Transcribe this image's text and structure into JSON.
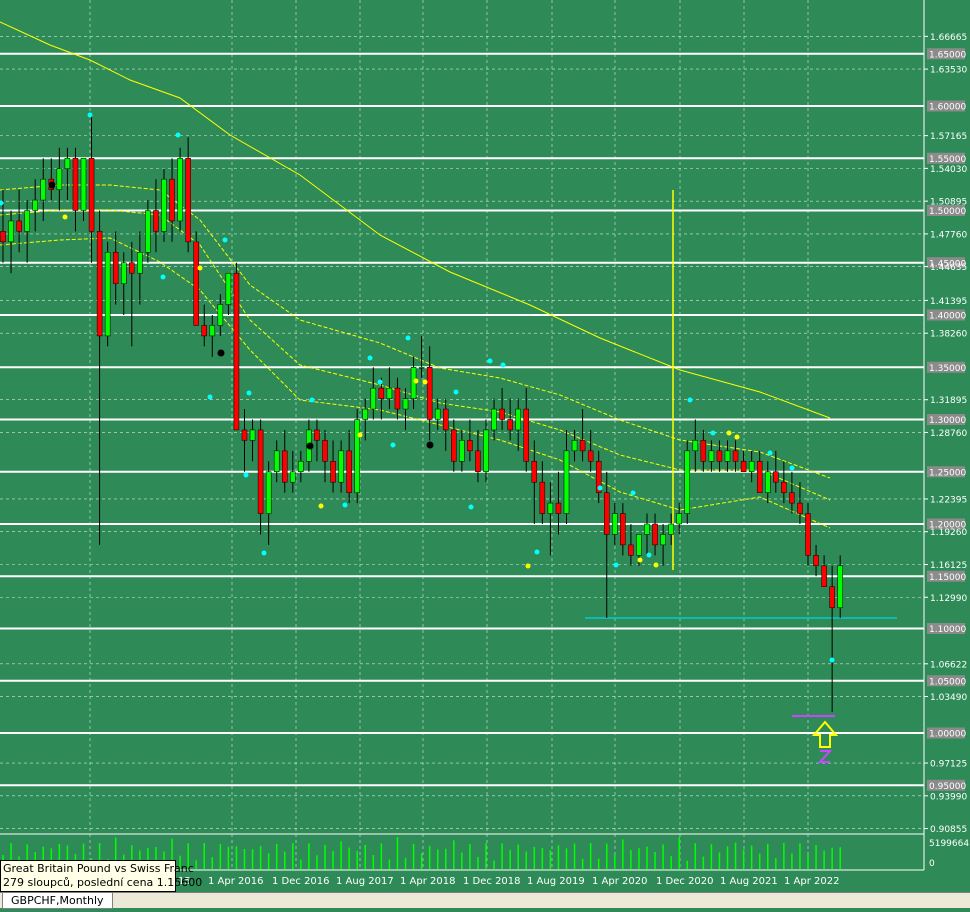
{
  "window": {
    "symbol_tab": "GBPCHF,Monthly"
  },
  "info": {
    "line1": "Great Britain Pound vs Swiss Franc",
    "line2": "279 sloupců, poslední cena 1.15600"
  },
  "colors": {
    "background": "#2e8b57",
    "bull_candle": "#00ff00",
    "bear_candle": "#ff0000",
    "ma_line": "#ffff00",
    "level_line": "#ffffff",
    "support_line": "#00cccc",
    "volume": "#00ff00",
    "dots_cyan": "#00ffff",
    "dots_yellow": "#ffff00",
    "arrow": "#ffff00",
    "zigzag_label": "#cc44ff"
  },
  "chart_data": {
    "type": "candlestick",
    "symbol": "GBPCHF",
    "timeframe": "Monthly",
    "ylim": [
      0.9085,
      1.69
    ],
    "price_axis_labels": [
      "1.66665",
      "1.65000",
      "1.63530",
      "1.60000",
      "1.57165",
      "1.55000",
      "1.54030",
      "1.50895",
      "1.50000",
      "1.47760",
      "1.45000",
      "1.44635",
      "1.41395",
      "1.40000",
      "1.38260",
      "1.35000",
      "1.31895",
      "1.30000",
      "1.28760",
      "1.25000",
      "1.22395",
      "1.20000",
      "1.19260",
      "1.16125",
      "1.15000",
      "1.12990",
      "1.10000",
      "1.06622",
      "1.05000",
      "1.03490",
      "1.00000",
      "0.97125",
      "0.95000",
      "0.93990",
      "0.90855"
    ],
    "highlighted_levels": [
      "1.65000",
      "1.60000",
      "1.55000",
      "1.50000",
      "1.45000",
      "1.40000",
      "1.35000",
      "1.30000",
      "1.25000",
      "1.20000",
      "1.15000",
      "1.10000",
      "1.05000",
      "1.00000",
      "0.95000"
    ],
    "x_axis_labels": [
      "15",
      "1 Apr 2016",
      "1 Dec 2016",
      "1 Aug 2017",
      "1 Apr 2018",
      "1 Dec 2018",
      "1 Aug 2019",
      "1 Apr 2020",
      "1 Dec 2020",
      "1 Aug 2021",
      "1 Apr 2022"
    ],
    "volume_labels": [
      "5199664",
      "0"
    ],
    "support_price": 1.11,
    "ohlc": [
      [
        1.48,
        1.52,
        1.45,
        1.47
      ],
      [
        1.47,
        1.5,
        1.44,
        1.49
      ],
      [
        1.49,
        1.52,
        1.46,
        1.48
      ],
      [
        1.48,
        1.51,
        1.45,
        1.5
      ],
      [
        1.5,
        1.53,
        1.48,
        1.51
      ],
      [
        1.51,
        1.55,
        1.49,
        1.53
      ],
      [
        1.53,
        1.55,
        1.51,
        1.52
      ],
      [
        1.52,
        1.56,
        1.5,
        1.54
      ],
      [
        1.54,
        1.56,
        1.51,
        1.55
      ],
      [
        1.55,
        1.56,
        1.48,
        1.5
      ],
      [
        1.5,
        1.55,
        1.49,
        1.55
      ],
      [
        1.55,
        1.59,
        1.45,
        1.48
      ],
      [
        1.48,
        1.5,
        1.18,
        1.38
      ],
      [
        1.38,
        1.47,
        1.37,
        1.46
      ],
      [
        1.46,
        1.48,
        1.41,
        1.43
      ],
      [
        1.43,
        1.46,
        1.4,
        1.45
      ],
      [
        1.45,
        1.47,
        1.37,
        1.44
      ],
      [
        1.44,
        1.48,
        1.41,
        1.46
      ],
      [
        1.46,
        1.51,
        1.45,
        1.5
      ],
      [
        1.5,
        1.53,
        1.46,
        1.48
      ],
      [
        1.48,
        1.54,
        1.47,
        1.53
      ],
      [
        1.53,
        1.55,
        1.47,
        1.49
      ],
      [
        1.49,
        1.56,
        1.48,
        1.55
      ],
      [
        1.55,
        1.57,
        1.46,
        1.47
      ],
      [
        1.47,
        1.48,
        1.39,
        1.39
      ],
      [
        1.39,
        1.41,
        1.37,
        1.38
      ],
      [
        1.38,
        1.4,
        1.36,
        1.39
      ],
      [
        1.39,
        1.42,
        1.38,
        1.41
      ],
      [
        1.41,
        1.44,
        1.4,
        1.44
      ],
      [
        1.44,
        1.45,
        1.29,
        1.29
      ],
      [
        1.29,
        1.31,
        1.25,
        1.28
      ],
      [
        1.28,
        1.3,
        1.26,
        1.29
      ],
      [
        1.29,
        1.3,
        1.19,
        1.21
      ],
      [
        1.21,
        1.26,
        1.18,
        1.25
      ],
      [
        1.25,
        1.28,
        1.24,
        1.27
      ],
      [
        1.27,
        1.29,
        1.23,
        1.24
      ],
      [
        1.24,
        1.27,
        1.23,
        1.25
      ],
      [
        1.25,
        1.27,
        1.24,
        1.26
      ],
      [
        1.26,
        1.3,
        1.25,
        1.29
      ],
      [
        1.29,
        1.3,
        1.26,
        1.28
      ],
      [
        1.28,
        1.29,
        1.24,
        1.26
      ],
      [
        1.26,
        1.28,
        1.23,
        1.24
      ],
      [
        1.24,
        1.28,
        1.23,
        1.27
      ],
      [
        1.27,
        1.29,
        1.22,
        1.23
      ],
      [
        1.23,
        1.31,
        1.22,
        1.3
      ],
      [
        1.3,
        1.32,
        1.28,
        1.31
      ],
      [
        1.31,
        1.35,
        1.3,
        1.33
      ],
      [
        1.33,
        1.34,
        1.3,
        1.32
      ],
      [
        1.32,
        1.35,
        1.31,
        1.33
      ],
      [
        1.33,
        1.34,
        1.3,
        1.31
      ],
      [
        1.31,
        1.33,
        1.29,
        1.32
      ],
      [
        1.32,
        1.36,
        1.31,
        1.35
      ],
      [
        1.35,
        1.38,
        1.34,
        1.35
      ],
      [
        1.35,
        1.37,
        1.28,
        1.3
      ],
      [
        1.3,
        1.32,
        1.29,
        1.31
      ],
      [
        1.31,
        1.32,
        1.27,
        1.29
      ],
      [
        1.29,
        1.3,
        1.25,
        1.26
      ],
      [
        1.26,
        1.29,
        1.25,
        1.28
      ],
      [
        1.28,
        1.3,
        1.26,
        1.27
      ],
      [
        1.27,
        1.29,
        1.24,
        1.25
      ],
      [
        1.25,
        1.3,
        1.24,
        1.29
      ],
      [
        1.29,
        1.32,
        1.28,
        1.31
      ],
      [
        1.31,
        1.33,
        1.29,
        1.3
      ],
      [
        1.3,
        1.32,
        1.28,
        1.29
      ],
      [
        1.29,
        1.32,
        1.27,
        1.31
      ],
      [
        1.31,
        1.33,
        1.25,
        1.26
      ],
      [
        1.26,
        1.28,
        1.2,
        1.24
      ],
      [
        1.24,
        1.26,
        1.2,
        1.21
      ],
      [
        1.21,
        1.24,
        1.17,
        1.22
      ],
      [
        1.22,
        1.25,
        1.19,
        1.21
      ],
      [
        1.21,
        1.29,
        1.2,
        1.27
      ],
      [
        1.27,
        1.29,
        1.26,
        1.28
      ],
      [
        1.28,
        1.31,
        1.26,
        1.27
      ],
      [
        1.27,
        1.29,
        1.25,
        1.26
      ],
      [
        1.26,
        1.27,
        1.22,
        1.23
      ],
      [
        1.23,
        1.25,
        1.11,
        1.19
      ],
      [
        1.19,
        1.22,
        1.18,
        1.21
      ],
      [
        1.21,
        1.22,
        1.17,
        1.18
      ],
      [
        1.18,
        1.2,
        1.16,
        1.17
      ],
      [
        1.17,
        1.19,
        1.16,
        1.19
      ],
      [
        1.19,
        1.21,
        1.17,
        1.2
      ],
      [
        1.2,
        1.21,
        1.17,
        1.18
      ],
      [
        1.18,
        1.2,
        1.16,
        1.19
      ],
      [
        1.19,
        1.21,
        1.18,
        1.2
      ],
      [
        1.2,
        1.22,
        1.19,
        1.21
      ],
      [
        1.21,
        1.28,
        1.2,
        1.27
      ],
      [
        1.27,
        1.3,
        1.25,
        1.28
      ],
      [
        1.28,
        1.29,
        1.25,
        1.26
      ],
      [
        1.26,
        1.28,
        1.25,
        1.27
      ],
      [
        1.27,
        1.28,
        1.25,
        1.26
      ],
      [
        1.26,
        1.28,
        1.25,
        1.27
      ],
      [
        1.27,
        1.28,
        1.25,
        1.26
      ],
      [
        1.26,
        1.27,
        1.25,
        1.25
      ],
      [
        1.25,
        1.27,
        1.24,
        1.26
      ],
      [
        1.26,
        1.27,
        1.23,
        1.23
      ],
      [
        1.23,
        1.26,
        1.22,
        1.25
      ],
      [
        1.25,
        1.27,
        1.23,
        1.24
      ],
      [
        1.24,
        1.26,
        1.22,
        1.23
      ],
      [
        1.23,
        1.25,
        1.21,
        1.22
      ],
      [
        1.22,
        1.24,
        1.2,
        1.21
      ],
      [
        1.21,
        1.22,
        1.16,
        1.17
      ],
      [
        1.17,
        1.18,
        1.15,
        1.16
      ],
      [
        1.16,
        1.17,
        1.14,
        1.14
      ],
      [
        1.14,
        1.16,
        1.02,
        1.12
      ],
      [
        1.12,
        1.17,
        1.11,
        1.16
      ]
    ]
  }
}
